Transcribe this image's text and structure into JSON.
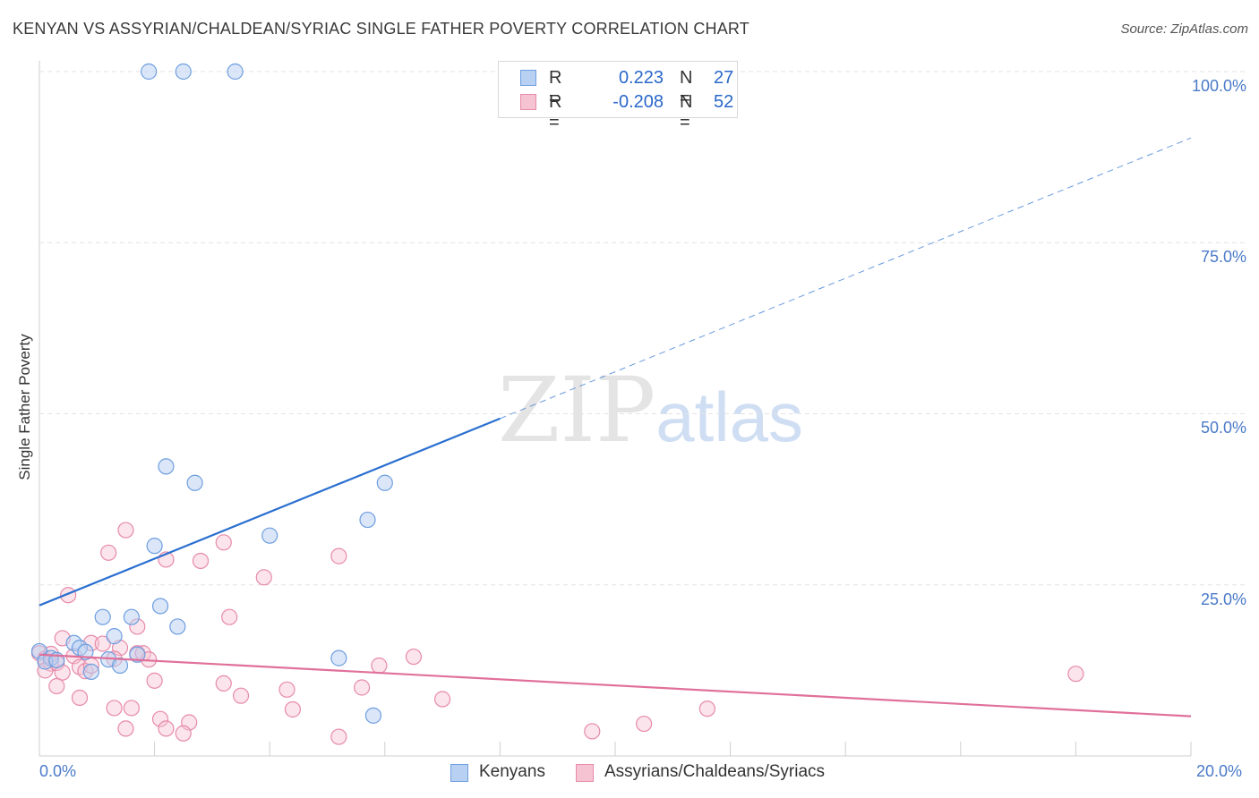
{
  "title": "KENYAN VS ASSYRIAN/CHALDEAN/SYRIAC SINGLE FATHER POVERTY CORRELATION CHART",
  "source": "Source: ZipAtlas.com",
  "watermark": {
    "zip": "ZIP",
    "atlas": "atlas"
  },
  "colors": {
    "kenyan_fill": "#b8d0f2",
    "kenyan_stroke": "#6e9ee0",
    "kenyan_line": "#2a6fd0",
    "assyrian_fill": "#f6c3d3",
    "assyrian_stroke": "#e78aa9",
    "assyrian_line": "#e0709a",
    "tick_text": "#4a7ac8",
    "grid": "#e3e3e3"
  },
  "legend_top": [
    {
      "r_label": "R =",
      "r_value": "0.223",
      "n_label": "N =",
      "n_value": "27"
    },
    {
      "r_label": "R =",
      "r_value": "-0.208",
      "n_label": "N =",
      "n_value": "52"
    }
  ],
  "chart_data": {
    "type": "scatter",
    "title": "KENYAN VS ASSYRIAN/CHALDEAN/SYRIAC SINGLE FATHER POVERTY CORRELATION CHART",
    "xlabel": "",
    "ylabel": "Single Father Poverty",
    "xlim": [
      0,
      20
    ],
    "ylim": [
      0,
      100
    ],
    "x_tick_labels": [
      "0.0%",
      "20.0%"
    ],
    "y_tick_labels": [
      "25.0%",
      "50.0%",
      "75.0%",
      "100.0%"
    ],
    "y_ticks": [
      25,
      50,
      75,
      100
    ],
    "grid": true,
    "legend_placement": "bottom",
    "series": [
      {
        "name": "Kenyans",
        "r": 0.223,
        "n": 27,
        "trend": {
          "x0": 0,
          "y0": 22.0,
          "x_solid_end": 8.0,
          "y_solid_end": 49.3,
          "x1": 20,
          "y1": 90.3
        },
        "points": [
          [
            1.9,
            100
          ],
          [
            2.5,
            100
          ],
          [
            3.4,
            100
          ],
          [
            2.2,
            42.3
          ],
          [
            2.7,
            39.9
          ],
          [
            6.0,
            39.9
          ],
          [
            5.7,
            34.5
          ],
          [
            4.0,
            32.2
          ],
          [
            2.0,
            30.7
          ],
          [
            2.1,
            21.9
          ],
          [
            1.6,
            20.3
          ],
          [
            1.1,
            20.3
          ],
          [
            2.4,
            18.9
          ],
          [
            1.3,
            17.5
          ],
          [
            0.0,
            15.3
          ],
          [
            0.2,
            14.3
          ],
          [
            0.6,
            16.5
          ],
          [
            0.7,
            15.8
          ],
          [
            0.8,
            15.2
          ],
          [
            0.1,
            13.8
          ],
          [
            0.3,
            14.0
          ],
          [
            0.9,
            12.3
          ],
          [
            1.2,
            14.1
          ],
          [
            1.4,
            13.2
          ],
          [
            1.7,
            14.8
          ],
          [
            5.2,
            14.3
          ],
          [
            5.8,
            5.9
          ]
        ]
      },
      {
        "name": "Assyrians/Chaldeans/Syriacs",
        "r": -0.208,
        "n": 52,
        "trend": {
          "x0": 0,
          "y0": 14.8,
          "x1": 20,
          "y1": 5.8
        },
        "points": [
          [
            1.5,
            33.0
          ],
          [
            3.2,
            31.2
          ],
          [
            5.2,
            29.2
          ],
          [
            1.2,
            29.7
          ],
          [
            2.2,
            28.7
          ],
          [
            2.8,
            28.5
          ],
          [
            3.9,
            26.1
          ],
          [
            0.5,
            23.5
          ],
          [
            3.3,
            20.3
          ],
          [
            1.7,
            18.9
          ],
          [
            0.4,
            17.2
          ],
          [
            0.9,
            16.5
          ],
          [
            1.1,
            16.4
          ],
          [
            1.4,
            15.8
          ],
          [
            1.7,
            15.0
          ],
          [
            1.8,
            15.0
          ],
          [
            0.0,
            15.0
          ],
          [
            0.1,
            14.2
          ],
          [
            0.2,
            13.5
          ],
          [
            0.3,
            13.6
          ],
          [
            0.6,
            14.6
          ],
          [
            0.7,
            13.0
          ],
          [
            0.1,
            12.5
          ],
          [
            0.4,
            12.2
          ],
          [
            0.8,
            12.4
          ],
          [
            0.9,
            13.2
          ],
          [
            1.3,
            14.2
          ],
          [
            1.9,
            14.1
          ],
          [
            6.5,
            14.5
          ],
          [
            5.9,
            13.2
          ],
          [
            18.0,
            12.0
          ],
          [
            2.0,
            11.0
          ],
          [
            0.3,
            10.2
          ],
          [
            3.2,
            10.6
          ],
          [
            4.3,
            9.7
          ],
          [
            5.6,
            10.0
          ],
          [
            3.5,
            8.8
          ],
          [
            0.7,
            8.5
          ],
          [
            7.0,
            8.3
          ],
          [
            1.3,
            7.0
          ],
          [
            1.6,
            7.0
          ],
          [
            4.4,
            6.8
          ],
          [
            11.6,
            6.9
          ],
          [
            2.1,
            5.4
          ],
          [
            2.6,
            4.9
          ],
          [
            10.5,
            4.7
          ],
          [
            1.5,
            4.0
          ],
          [
            2.2,
            4.0
          ],
          [
            2.5,
            3.3
          ],
          [
            5.2,
            2.8
          ],
          [
            9.6,
            3.6
          ],
          [
            0.2,
            14.9
          ]
        ]
      }
    ]
  },
  "legend_bottom": [
    {
      "label": "Kenyans"
    },
    {
      "label": "Assyrians/Chaldeans/Syriacs"
    }
  ]
}
